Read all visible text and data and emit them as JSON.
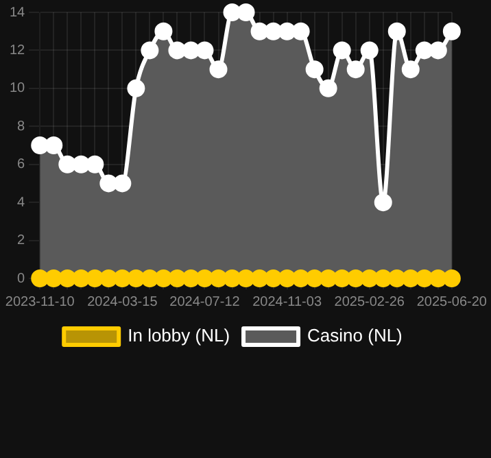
{
  "chart_data": {
    "type": "area",
    "categories": [
      "2023-11-10",
      null,
      null,
      null,
      null,
      null,
      "2024-03-15",
      null,
      null,
      null,
      null,
      null,
      "2024-07-12",
      null,
      null,
      null,
      null,
      null,
      "2024-11-03",
      null,
      null,
      null,
      null,
      null,
      "2025-02-26",
      null,
      null,
      null,
      null,
      null,
      "2025-06-20"
    ],
    "series": [
      {
        "name": "In lobby (NL)",
        "type": "line",
        "color": "#ffcc00",
        "values": [
          0,
          0,
          0,
          0,
          0,
          0,
          0,
          0,
          0,
          0,
          0,
          0,
          0,
          0,
          0,
          0,
          0,
          0,
          0,
          0,
          0,
          0,
          0,
          0,
          0,
          0,
          0,
          0,
          0,
          0,
          0
        ]
      },
      {
        "name": "Casino (NL)",
        "color": "#ffffff",
        "values": [
          7,
          7,
          6,
          6,
          6,
          5,
          5,
          10,
          12,
          13,
          12,
          12,
          12,
          11,
          14,
          14,
          13,
          13,
          13,
          13,
          11,
          10,
          12,
          11,
          12,
          4,
          13,
          11,
          12,
          12,
          13
        ]
      }
    ],
    "ylim": [
      0,
      14
    ],
    "yticks": [
      0,
      2,
      4,
      6,
      8,
      10,
      12,
      14
    ],
    "grid": true,
    "legend": "bottom",
    "marker": "circle"
  }
}
